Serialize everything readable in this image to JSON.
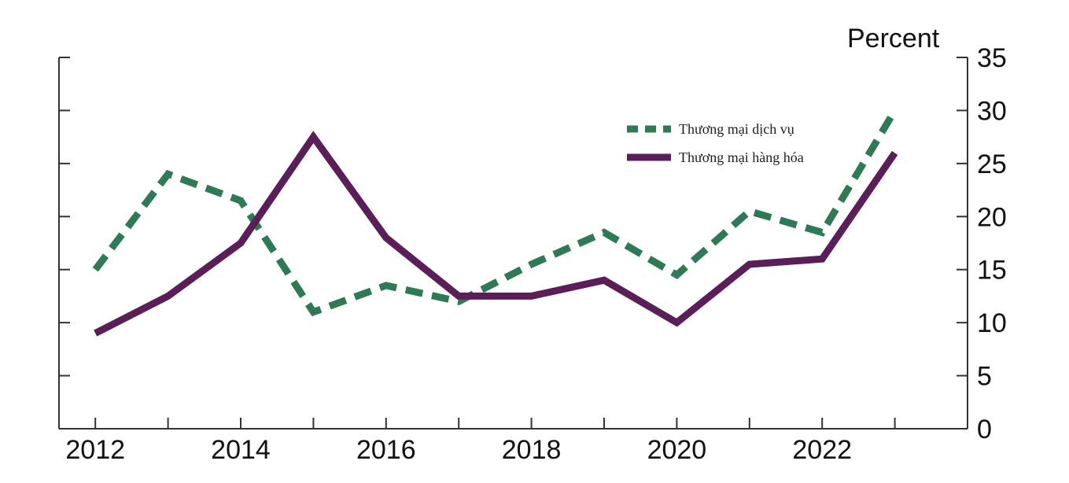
{
  "chart_data": {
    "type": "line",
    "x": [
      2012,
      2013,
      2014,
      2015,
      2016,
      2017,
      2018,
      2019,
      2020,
      2021,
      2022,
      2023
    ],
    "series": [
      {
        "name": "Thương mại dịch vụ",
        "values": [
          15,
          24,
          21.5,
          11,
          13.5,
          12,
          15.5,
          18.5,
          14.5,
          20.5,
          18.5,
          30
        ],
        "color": "#2e7a56",
        "style": "dashed"
      },
      {
        "name": "Thương mại hàng hóa",
        "values": [
          9,
          12.5,
          17.5,
          27.5,
          18,
          12.5,
          12.5,
          14,
          10,
          15.5,
          16,
          26
        ],
        "color": "#5a1f58",
        "style": "solid"
      }
    ],
    "xticks": [
      "2012",
      "2014",
      "2016",
      "2018",
      "2020",
      "2022"
    ],
    "yticks": [
      "0",
      "5",
      "10",
      "15",
      "20",
      "25",
      "30",
      "35"
    ],
    "ylim": [
      0,
      35
    ],
    "ylabel": "Percent",
    "xlabel": "",
    "grid": false,
    "legend": "top-right"
  }
}
